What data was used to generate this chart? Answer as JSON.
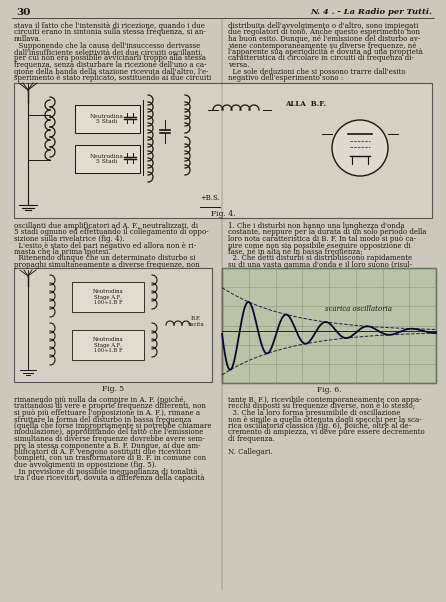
{
  "bg_color": "#ccc8bc",
  "text_color": "#1a1510",
  "page_number": "30",
  "header_right": "N. 4 . - La Radio per Tutti.",
  "fig4_caption": "Fig. 4.",
  "fig5_caption": "Fig. 5",
  "fig6_caption": "Fig. 6.",
  "graph_label": "scarica oscillatoria",
  "col1_top": [
    "stava il fatto che l'intensità di ricezione, quando i due",
    "circuiti erano in sintonia sulla stessa frequenza, si an-",
    "nullava.",
    "  Supponendo che la causa dell'insuccesso derivasse",
    "dall'insufficiente selettività dei due circuiti oscillanti,",
    "per cui non era possibile avvicinarli troppo alla stessa",
    "frequenza, senza disturbare la ricezione dell'uno a ca-",
    "gione della banda della stazione ricevuta dall'altro, l'e-",
    "sperimento è stato replicato, sostituendo ai due circuiti"
  ],
  "col2_top": [
    "distribuita dell'avvolgimento o d'altro, sono impiegati",
    "due regolatori di tono. Anche questo esperimento non",
    "ha buon esito. Dunque, né l'emissione del disturbo av-",
    "viene contemporaneamente su diverse frequenze, né",
    "l'apparente sua aperiodicità è dovuta ad una proprietà",
    "caratteristica di circolare in circuiti di frequenza di-",
    "versa.",
    "  Le sole deduzioni che si possono trarre dall'esito",
    "negativo dell'esperimento sono :"
  ],
  "col1_mid": [
    "oscillanti due amplificatori ad A. F., neutralizzati, di",
    "5 stadi ognuno ed effettuando il collegamento di oppo-",
    "sizione sulla rivelatrice (fig. 4).",
    "  L'esito è stato del pari negativo ed allora non è ri-",
    "masta che la prima ipotesi.",
    "  Ritenendo dunque che un determinato disturbo si",
    "propaghi simultaneamente a diverse frequenze, non"
  ],
  "col2_mid": [
    "1. Che i disturbi non hanno una lunghezza d'onda",
    "costante, neppure per la durata di un solo periodo della",
    "loro nota caratteristica di B. F. In tal modo si può ca-",
    "pire come non sia possibile eseguire opposizione di",
    "fase, né in alta né in bassa frequenza;",
    "  2. Che detti disturbi si distribuiscono rapidamente",
    "su di una vasta gamma d'onda e il loro suono (risul-"
  ],
  "col1_bot": [
    "rimanendo più nulla da compire in A. F. (poiché,",
    "trattandosi di vere e proprie frequenze differenti, non",
    "si può più effettuare l'opposizione in A. F.), rimane a",
    "sfruttare la forma del disturbo in bassa frequenza",
    "(quella che forse impropriamente si potrebbe chiamare",
    "modulazione), approfittando del fatto che l'emissione",
    "simultanea di diverse frequenze dovrebbe avere sem-",
    "pre la stessa componente a B. F. Dunque, ai due am-",
    "plificatori di A. F. vengono sostituiti due ricevitori",
    "completi, con un trasformatore di B. F. in comune con",
    "due avvolgimenti in opposizione (fig. 5).",
    "  In previsione di possibile ineguaglianza di tonalità",
    "tra i due ricevitori, dovuta a differenza della capacità"
  ],
  "col2_bot": [
    "tante B. F.), ricevibile contemporaneamente con appa-",
    "recchi disposti su frequenze diverse, non è lo stesso;",
    "  3. Che la loro forma presumibile di oscillazione",
    "non è simile a quella ottenuta dagli specchi per la sca-",
    "rica oscillatoria classica (fig. 6), poiché, oltre al de-",
    "cremento di ampiezza, vi deve pure essere decremento",
    "di frequenza.",
    "",
    "N. Callegari."
  ]
}
